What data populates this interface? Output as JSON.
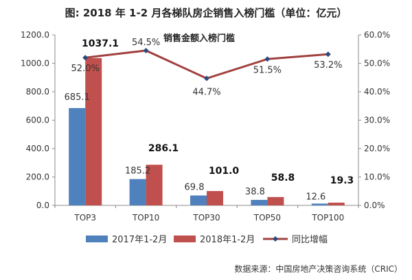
{
  "chart_data": {
    "type": "bar",
    "title": "图: 2018 年 1-2 月各梯队房企销售入榜门槛（单位：亿元）",
    "subtitle": "销售金额入榜门槛",
    "categories": [
      "TOP3",
      "TOP10",
      "TOP30",
      "TOP50",
      "TOP100"
    ],
    "series": [
      {
        "name": "2017年1-2月",
        "kind": "bar",
        "axis": "left",
        "color": "#4F81BD",
        "values": [
          685.1,
          185.2,
          69.8,
          38.8,
          12.6
        ],
        "labels": [
          "685.1",
          "185.2",
          "69.8",
          "38.8",
          "12.6"
        ]
      },
      {
        "name": "2018年1-2月",
        "kind": "bar",
        "axis": "left",
        "color": "#C0504D",
        "values": [
          1037.1,
          286.1,
          101.0,
          58.8,
          19.3
        ],
        "labels": [
          "1037.1",
          "286.1",
          "101.0",
          "58.8",
          "19.3"
        ]
      },
      {
        "name": "同比增幅",
        "kind": "line",
        "axis": "right",
        "color": "#A0413F",
        "marker_color": "#2A4A7F",
        "values": [
          52.0,
          54.5,
          44.7,
          51.5,
          53.2
        ],
        "labels": [
          "52.0%",
          "54.5%",
          "44.7%",
          "51.5%",
          "53.2%"
        ]
      }
    ],
    "y_left": {
      "range": [
        0,
        1200
      ],
      "ticks": [
        "0.0",
        "200.0",
        "400.0",
        "600.0",
        "800.0",
        "1000.0",
        "1200.0"
      ]
    },
    "y_right": {
      "range": [
        0,
        60
      ],
      "ticks": [
        "0.0%",
        "10.0%",
        "20.0%",
        "30.0%",
        "40.0%",
        "50.0%",
        "60.0%"
      ]
    },
    "grid": false,
    "legend_position": "bottom"
  },
  "source": "数据来源：中国房地产决策咨询系统（CRIC）"
}
